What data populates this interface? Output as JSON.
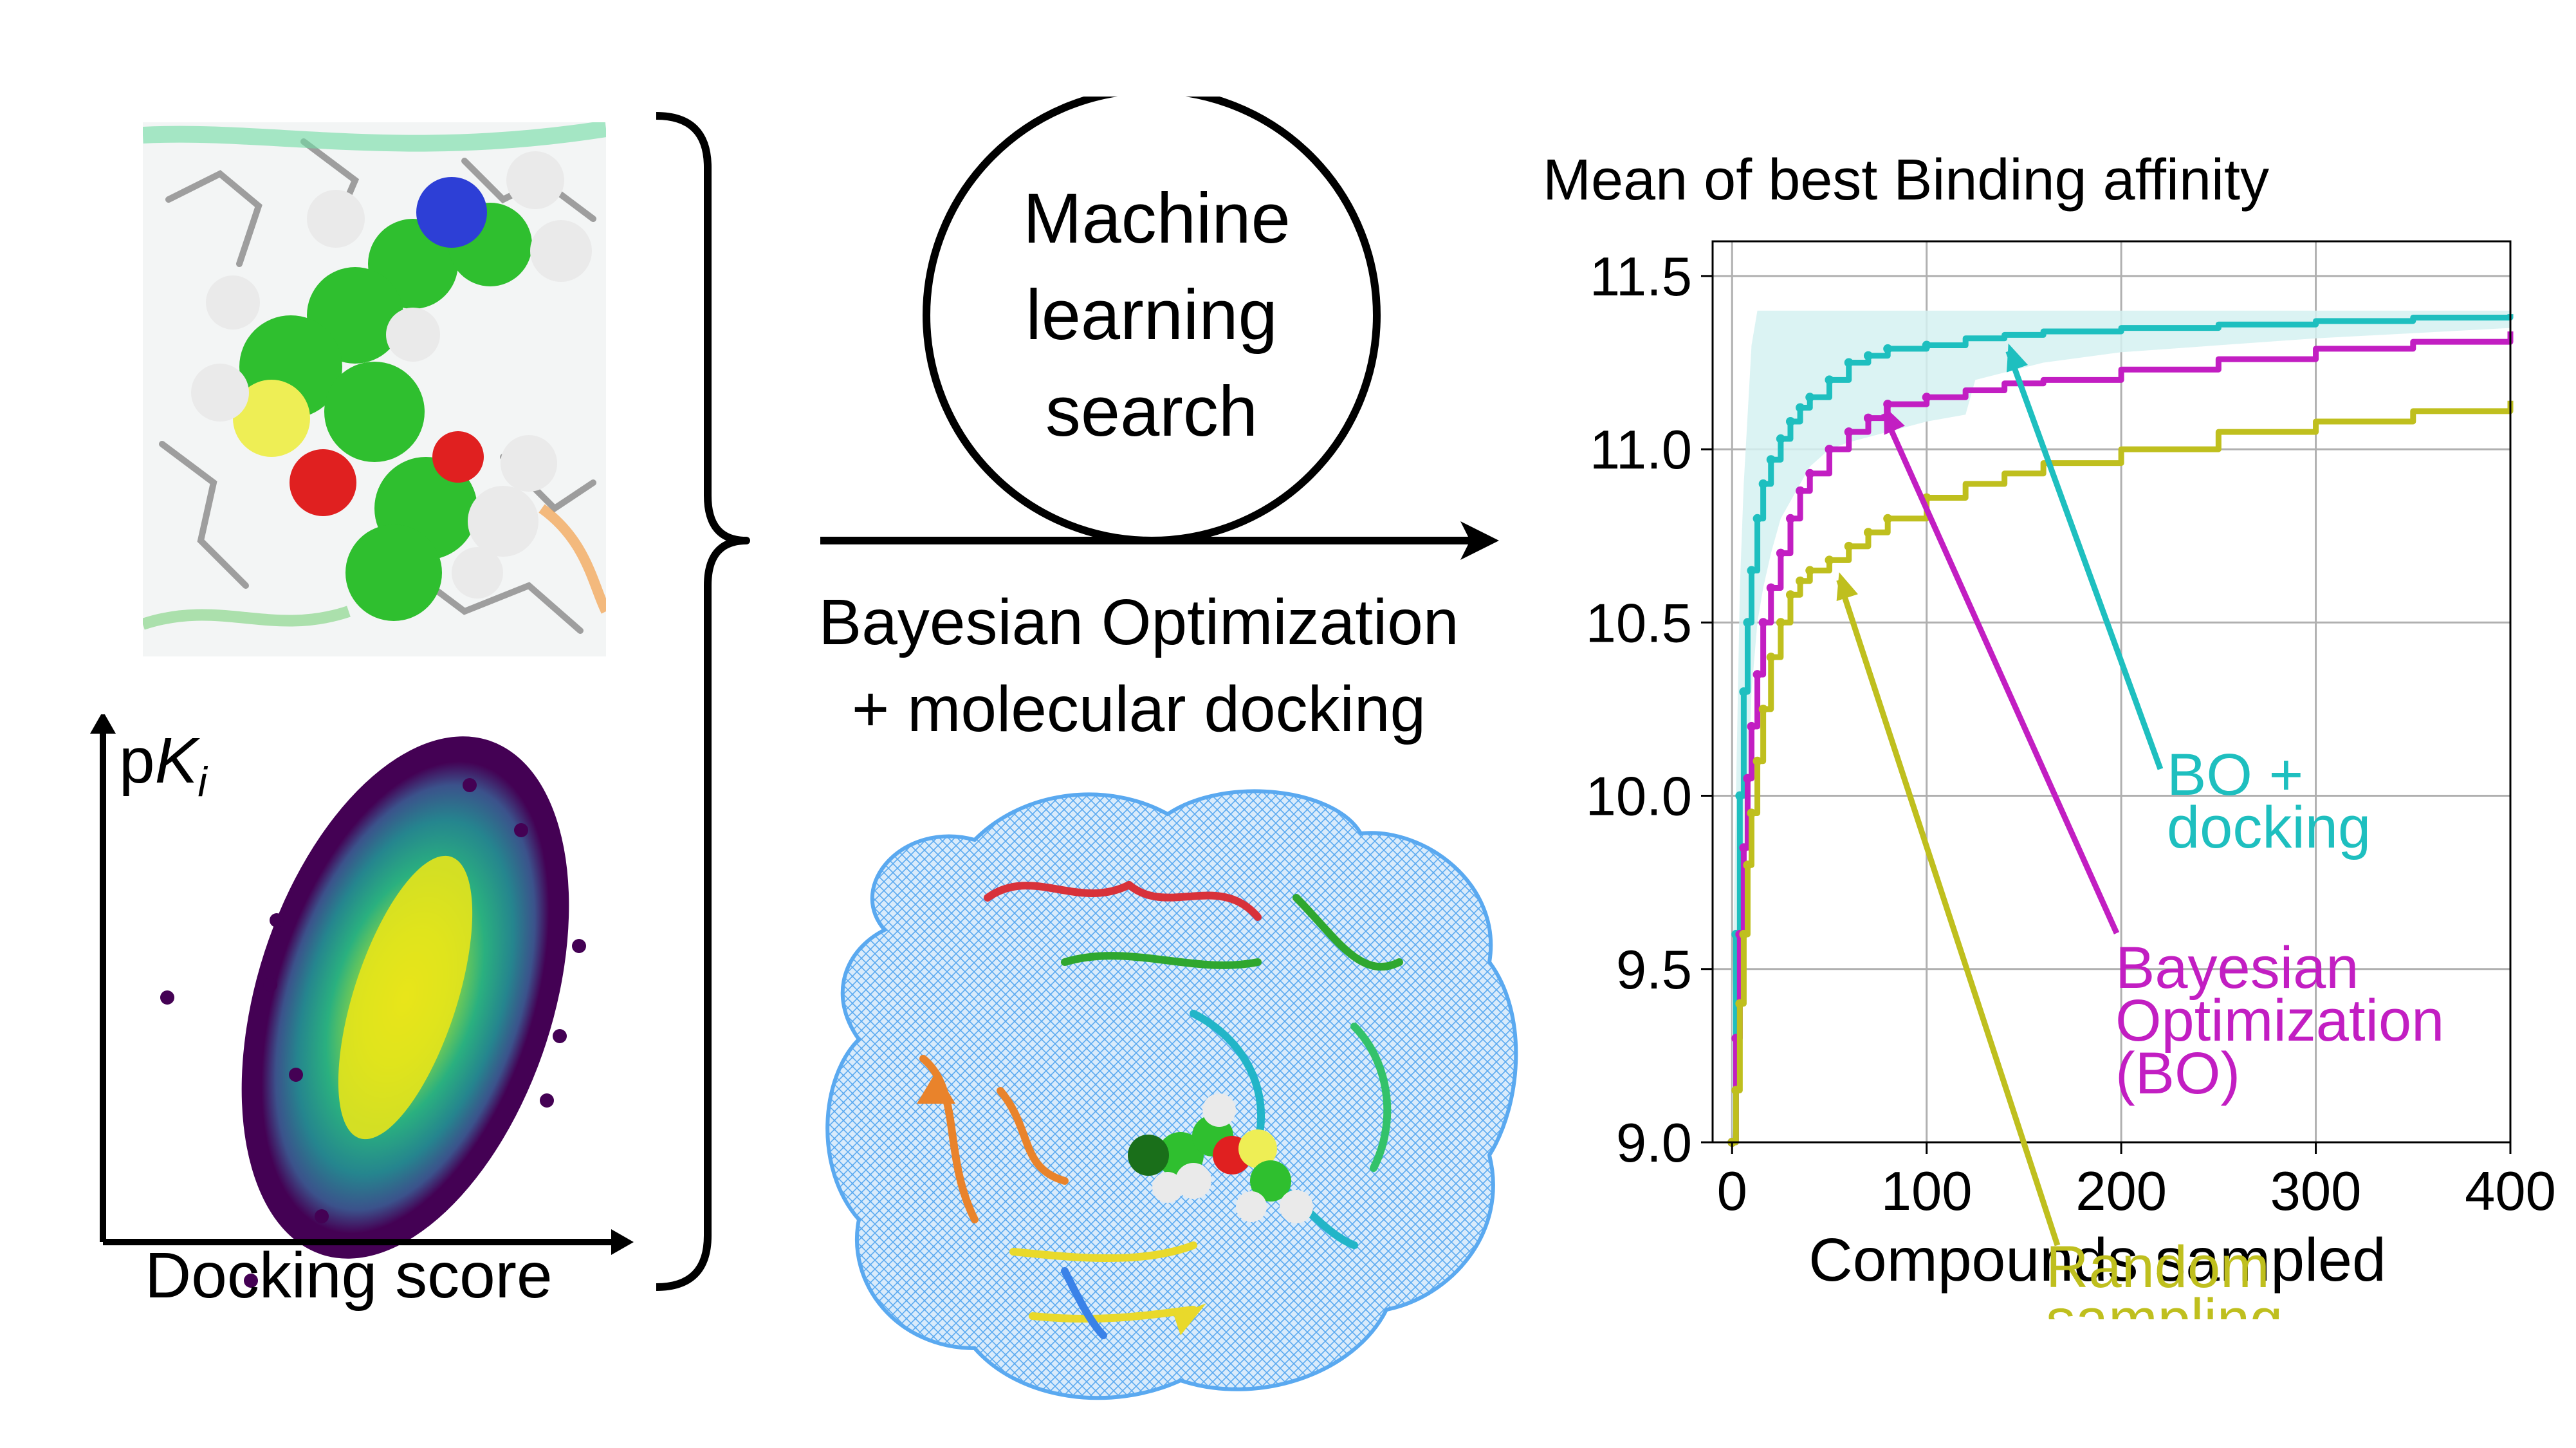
{
  "left_panel": {
    "y_axis_label_prefix": "p",
    "y_axis_label_var": "K",
    "y_axis_label_sub": "i",
    "x_axis_label": "Docking score"
  },
  "center": {
    "circle_lines": [
      "Machine",
      "learning",
      "search"
    ],
    "method_line1": "Bayesian Optimization",
    "method_line2": "+ molecular docking"
  },
  "colors": {
    "bo_docking": "#1ebfbf",
    "bo": "#c21ec2",
    "random": "#bfbf1e",
    "band": "#d5f1f1"
  },
  "chart_data": {
    "type": "line",
    "title": "Mean of best Binding affinity",
    "xlabel": "Compounds sampled",
    "ylabel": "",
    "xlim": [
      -10,
      400
    ],
    "ylim": [
      9.0,
      11.6
    ],
    "xticks": [
      0,
      100,
      200,
      300,
      400
    ],
    "yticks": [
      9.0,
      9.5,
      10.0,
      10.5,
      11.0,
      11.5
    ],
    "xtick_labels": [
      "0",
      "100",
      "200",
      "300",
      "400"
    ],
    "ytick_labels": [
      "9.0",
      "9.5",
      "10.0",
      "10.5",
      "11.0",
      "11.5"
    ],
    "grid": true,
    "series": [
      {
        "name": "BO + docking",
        "color": "#1ebfbf",
        "x": [
          0,
          2,
          4,
          6,
          8,
          10,
          13,
          16,
          20,
          25,
          30,
          35,
          40,
          50,
          60,
          70,
          80,
          100,
          120,
          140,
          160,
          200,
          250,
          300,
          350,
          400
        ],
        "y": [
          9.0,
          9.6,
          10.0,
          10.3,
          10.5,
          10.65,
          10.8,
          10.9,
          10.97,
          11.03,
          11.08,
          11.12,
          11.15,
          11.2,
          11.25,
          11.27,
          11.29,
          11.3,
          11.32,
          11.33,
          11.34,
          11.35,
          11.36,
          11.37,
          11.38,
          11.39
        ]
      },
      {
        "name": "Bayesian Optimization (BO)",
        "color": "#c21ec2",
        "x": [
          0,
          2,
          4,
          6,
          8,
          10,
          13,
          16,
          20,
          25,
          30,
          35,
          40,
          50,
          60,
          70,
          80,
          100,
          120,
          140,
          160,
          200,
          250,
          300,
          350,
          400
        ],
        "y": [
          9.0,
          9.3,
          9.6,
          9.85,
          10.05,
          10.2,
          10.35,
          10.5,
          10.6,
          10.7,
          10.8,
          10.88,
          10.93,
          11.0,
          11.05,
          11.09,
          11.13,
          11.15,
          11.17,
          11.19,
          11.2,
          11.23,
          11.26,
          11.29,
          11.31,
          11.34
        ]
      },
      {
        "name": "Random sampling",
        "color": "#bfbf1e",
        "x": [
          0,
          2,
          4,
          6,
          8,
          10,
          13,
          16,
          20,
          25,
          30,
          35,
          40,
          50,
          60,
          70,
          80,
          100,
          120,
          140,
          160,
          200,
          250,
          300,
          350,
          400
        ],
        "y": [
          9.0,
          9.15,
          9.4,
          9.6,
          9.8,
          9.95,
          10.1,
          10.25,
          10.4,
          10.5,
          10.58,
          10.62,
          10.65,
          10.68,
          10.72,
          10.76,
          10.8,
          10.86,
          10.9,
          10.93,
          10.96,
          11.0,
          11.05,
          11.08,
          11.11,
          11.14
        ]
      }
    ],
    "band": {
      "x": [
        0,
        2,
        4,
        6,
        8,
        10,
        13,
        16,
        20,
        25,
        30,
        35,
        40,
        50,
        60,
        80,
        100,
        120,
        125,
        160,
        200,
        250,
        300,
        400
      ],
      "lower": [
        9.0,
        9.2,
        9.5,
        9.8,
        10.0,
        10.3,
        10.5,
        10.6,
        10.7,
        10.8,
        10.85,
        10.9,
        10.95,
        11.0,
        11.02,
        11.05,
        11.08,
        11.1,
        11.2,
        11.25,
        11.28,
        11.3,
        11.32,
        11.35
      ],
      "upper": [
        9.4,
        10.0,
        10.6,
        10.9,
        11.1,
        11.3,
        11.4,
        11.4,
        11.4,
        11.4,
        11.4,
        11.4,
        11.4,
        11.4,
        11.4,
        11.4,
        11.4,
        11.4,
        11.4,
        11.4,
        11.4,
        11.4,
        11.4,
        11.4
      ]
    },
    "annotations": [
      {
        "lines": [
          "BO +",
          "docking"
        ],
        "color": "#1ebfbf",
        "arrow_to": [
          142,
          11.32
        ]
      },
      {
        "lines": [
          "Bayesian",
          "Optimization",
          "(BO)"
        ],
        "color": "#c21ec2",
        "arrow_to": [
          78,
          11.14
        ]
      },
      {
        "lines": [
          "Random",
          "sampling"
        ],
        "color": "#bfbf1e",
        "arrow_to": [
          55,
          10.66
        ]
      }
    ]
  }
}
